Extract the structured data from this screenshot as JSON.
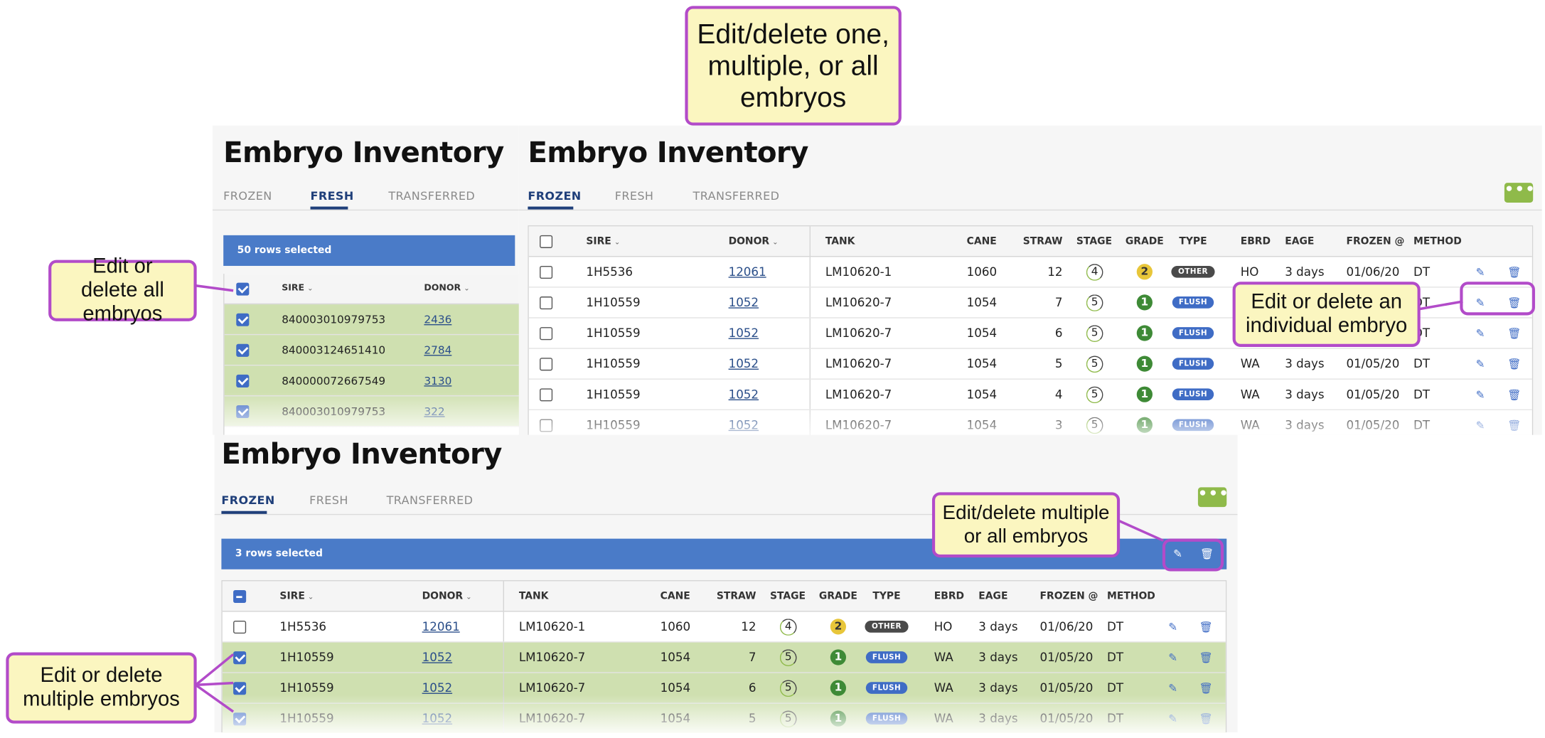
{
  "app_title": "Embryo Inventory",
  "tabs": [
    "FROZEN",
    "FRESH",
    "TRANSFERRED"
  ],
  "more_icon": "more-horizontal-icon",
  "callouts": {
    "top": "Edit/delete one, multiple, or all embryos",
    "all": "Edit or delete all embryos",
    "individual": "Edit or delete an individual embryo",
    "multiple_all": "Edit/delete multiple or all embryos",
    "multiple": "Edit or delete multiple embryos"
  },
  "fresh_view": {
    "active_tab": "FRESH",
    "selection_label": "50 rows selected",
    "columns": [
      "SIRE",
      "DONOR"
    ],
    "rows": [
      {
        "sire": "840003010979753",
        "donor": "2436"
      },
      {
        "sire": "840003124651410",
        "donor": "2784"
      },
      {
        "sire": "840000072667549",
        "donor": "3130"
      },
      {
        "sire": "840003010979753",
        "donor": "322"
      }
    ]
  },
  "frozen_view": {
    "active_tab": "FROZEN",
    "columns": [
      "SIRE",
      "DONOR",
      "TANK",
      "CANE",
      "STRAW",
      "STAGE",
      "GRADE",
      "TYPE",
      "EBRD",
      "EAGE",
      "FROZEN @",
      "METHOD"
    ],
    "rows": [
      {
        "sire": "1H5536",
        "donor": "12061",
        "tank": "LM10620-1",
        "cane": "1060",
        "straw": "12",
        "stage": "4",
        "grade": "2",
        "type": "OTHER",
        "ebrd": "HO",
        "eage": "3 days",
        "frozen": "01/06/20",
        "method": "DT"
      },
      {
        "sire": "1H10559",
        "donor": "1052",
        "tank": "LM10620-7",
        "cane": "1054",
        "straw": "7",
        "stage": "5",
        "grade": "1",
        "type": "FLUSH",
        "ebrd": "WA",
        "eage": "3 days",
        "frozen": "01/05/20",
        "method": "DT"
      },
      {
        "sire": "1H10559",
        "donor": "1052",
        "tank": "LM10620-7",
        "cane": "1054",
        "straw": "6",
        "stage": "5",
        "grade": "1",
        "type": "FLUSH",
        "ebrd": "WA",
        "eage": "3 days",
        "frozen": "01/05/20",
        "method": "DT"
      },
      {
        "sire": "1H10559",
        "donor": "1052",
        "tank": "LM10620-7",
        "cane": "1054",
        "straw": "5",
        "stage": "5",
        "grade": "1",
        "type": "FLUSH",
        "ebrd": "WA",
        "eage": "3 days",
        "frozen": "01/05/20",
        "method": "DT"
      },
      {
        "sire": "1H10559",
        "donor": "1052",
        "tank": "LM10620-7",
        "cane": "1054",
        "straw": "4",
        "stage": "5",
        "grade": "1",
        "type": "FLUSH",
        "ebrd": "WA",
        "eage": "3 days",
        "frozen": "01/05/20",
        "method": "DT"
      },
      {
        "sire": "1H10559",
        "donor": "1052",
        "tank": "LM10620-7",
        "cane": "1054",
        "straw": "3",
        "stage": "5",
        "grade": "1",
        "type": "FLUSH",
        "ebrd": "WA",
        "eage": "3 days",
        "frozen": "01/05/20",
        "method": "DT"
      }
    ]
  },
  "multi_view": {
    "active_tab": "FROZEN",
    "selection_label": "3 rows selected",
    "selected_rows": [
      1,
      2,
      3
    ]
  },
  "colors": {
    "accent_blue": "#4a7bc8",
    "selected_row": "#cfe0b0",
    "more_button": "#8fba4a",
    "callout_border": "#b24bc9",
    "callout_fill": "#fbf6c0"
  }
}
